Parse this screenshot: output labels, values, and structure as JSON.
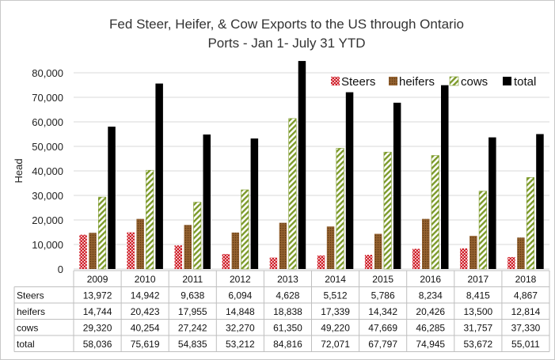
{
  "chart_data": {
    "type": "bar",
    "title_lines": [
      "Fed Steer, Heifer, & Cow Exports to the US through Ontario",
      "Ports - Jan 1- July 31 YTD"
    ],
    "xlabel": "",
    "ylabel": "Head",
    "ylim": [
      0,
      80000
    ],
    "yticks": [
      "0",
      "10,000",
      "20,000",
      "30,000",
      "40,000",
      "50,000",
      "60,000",
      "70,000",
      "80,000"
    ],
    "grid": true,
    "legend_position": "top-right",
    "categories": [
      "2009",
      "2010",
      "2011",
      "2012",
      "2013",
      "2014",
      "2015",
      "2016",
      "2017",
      "2018"
    ],
    "series": [
      {
        "name": "Steers",
        "values": [
          13972,
          14942,
          9638,
          6094,
          4628,
          5512,
          5786,
          8234,
          8415,
          4867
        ],
        "labels": [
          "13,972",
          "14,942",
          "9,638",
          "6,094",
          "4,628",
          "5,512",
          "5,786",
          "8,234",
          "8,415",
          "4,867"
        ]
      },
      {
        "name": "heifers",
        "values": [
          14744,
          20423,
          17955,
          14848,
          18838,
          17339,
          14342,
          20426,
          13500,
          12814
        ],
        "labels": [
          "14,744",
          "20,423",
          "17,955",
          "14,848",
          "18,838",
          "17,339",
          "14,342",
          "20,426",
          "13,500",
          "12,814"
        ]
      },
      {
        "name": "cows",
        "values": [
          29320,
          40254,
          27242,
          32270,
          61350,
          49220,
          47669,
          46285,
          31757,
          37330
        ],
        "labels": [
          "29,320",
          "40,254",
          "27,242",
          "32,270",
          "61,350",
          "49,220",
          "47,669",
          "46,285",
          "31,757",
          "37,330"
        ]
      },
      {
        "name": "total",
        "values": [
          58036,
          75619,
          54835,
          53212,
          84816,
          72071,
          67797,
          74945,
          53672,
          55011
        ],
        "labels": [
          "58,036",
          "75,619",
          "54,835",
          "53,212",
          "84,816",
          "72,071",
          "67,797",
          "74,945",
          "53,672",
          "55,011"
        ]
      }
    ],
    "table_row_labels": [
      "Steers",
      "heifers",
      "cows",
      "total"
    ]
  },
  "colors": {
    "steers": "#d0202a",
    "heifers": "#7a4a1e",
    "cows_fill": "#ffffff",
    "cows_stripe": "#7c9a2a",
    "total": "#000000",
    "grid": "#d9d9d9",
    "table_border": "#bfbfbf"
  }
}
